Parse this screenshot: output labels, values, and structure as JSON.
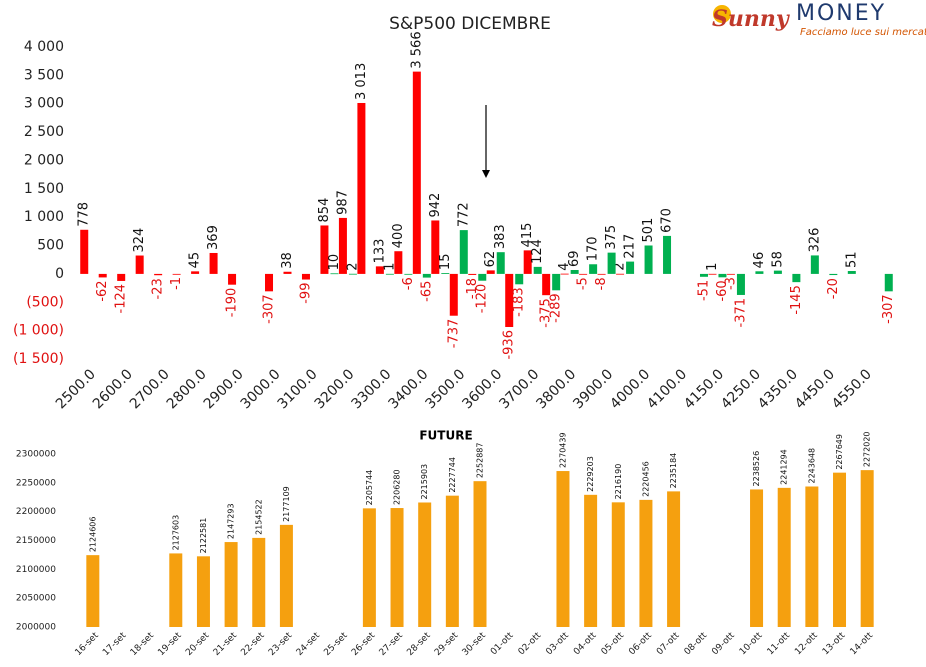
{
  "logo": {
    "brand": "Sunny",
    "name": "MONEY",
    "tagline": "Facciamo luce sui mercati"
  },
  "chart_data": [
    {
      "type": "bar",
      "title": "S&P500 DICEMBRE",
      "categories": [
        "2500.0",
        null,
        "2600.0",
        null,
        "2700.0",
        null,
        "2800.0",
        null,
        "2900.0",
        null,
        "3000.0",
        null,
        "3100.0",
        null,
        "3200.0",
        null,
        "3300.0",
        null,
        "3400.0",
        null,
        "3500.0",
        null,
        "3600.0",
        null,
        "3700.0",
        null,
        "3800.0",
        null,
        "3900.0",
        null,
        "4000.0",
        null,
        "4100.0",
        null,
        "4150.0",
        null,
        "4250.0",
        null,
        "4350.0",
        null,
        "4450.0",
        null,
        "4550.0",
        null
      ],
      "series": [
        {
          "color": "#ff0000",
          "values": [
            778,
            -62,
            -124,
            324,
            -23,
            -1,
            45,
            369,
            -190,
            null,
            -307,
            38,
            -99,
            854,
            987,
            3013,
            133,
            400,
            3566,
            942,
            -737,
            -18,
            62,
            -936,
            415,
            -375,
            4,
            -5,
            -8,
            2,
            null,
            null,
            null,
            null,
            1,
            -3,
            null,
            null,
            null,
            null,
            null,
            null,
            null,
            null
          ],
          "value_labels": [
            "778",
            "-62",
            "-124",
            "324",
            "-23",
            "-1",
            "45",
            "369",
            "-190",
            null,
            "-307",
            "38",
            "-99",
            "854",
            "987",
            "3 013",
            "133",
            "400",
            "3 566",
            "942",
            "-737",
            "-18",
            "62",
            "-936",
            "415",
            "-375",
            "4",
            "-5",
            "-8",
            "2",
            null,
            null,
            null,
            null,
            "1",
            "-3",
            null,
            null,
            null,
            null,
            null,
            null,
            null,
            null
          ]
        },
        {
          "color": "#00b050",
          "values": [
            null,
            null,
            null,
            null,
            null,
            null,
            null,
            null,
            null,
            null,
            null,
            null,
            null,
            10,
            2,
            null,
            1,
            -6,
            -65,
            15,
            772,
            -120,
            383,
            -183,
            124,
            -289,
            69,
            170,
            375,
            217,
            501,
            670,
            null,
            -51,
            -60,
            -371,
            46,
            58,
            -145,
            326,
            -20,
            51,
            null,
            -307
          ],
          "value_labels": [
            null,
            null,
            null,
            null,
            null,
            null,
            null,
            null,
            null,
            null,
            null,
            null,
            null,
            "10",
            "2",
            null,
            "1",
            "-6",
            "-65",
            "15",
            "772",
            "-120",
            "383",
            "-183",
            "124",
            "-289",
            "69",
            "170",
            "375",
            "217",
            "501",
            "670",
            null,
            "-51",
            "-60",
            "-371",
            "46",
            "58",
            "-145",
            "326",
            "-20",
            "51",
            null,
            "-307"
          ]
        }
      ],
      "ylim": [
        -1500,
        4000
      ],
      "yticks": [
        {
          "value": -1500,
          "label": "(1 500)"
        },
        {
          "value": -1000,
          "label": "(1 000)"
        },
        {
          "value": -500,
          "label": "(500)"
        },
        0,
        {
          "value": 500,
          "label": "500"
        },
        {
          "value": 1000,
          "label": "1 000"
        },
        {
          "value": 1500,
          "label": "1 500"
        },
        {
          "value": 2000,
          "label": "2 000"
        },
        {
          "value": 2500,
          "label": "2 500"
        },
        {
          "value": 3000,
          "label": "3 000"
        },
        {
          "value": 3500,
          "label": "3 500"
        },
        {
          "value": 4000,
          "label": "4 000"
        }
      ],
      "negative_color": "#e01010",
      "grid": false
    },
    {
      "type": "bar",
      "title": "FUTURE",
      "categories": [
        "16-set",
        "17-set",
        "18-set",
        "19-set",
        "20-set",
        "21-set",
        "22-set",
        "23-set",
        "24-set",
        "25-set",
        "26-set",
        "27-set",
        "28-set",
        "29-set",
        "30-set",
        "01-ott",
        "02-ott",
        "03-ott",
        "04-ott",
        "05-ott",
        "06-ott",
        "07-ott",
        "08-ott",
        "09-ott",
        "10-ott",
        "11-ott",
        "12-ott",
        "13-ott",
        "14-ott"
      ],
      "series": [
        {
          "color": "#f5a00f",
          "values": [
            2124606,
            null,
            null,
            2127603,
            2122581,
            2147293,
            2154522,
            2177109,
            null,
            null,
            2205744,
            2206280,
            2215903,
            2227744,
            2252887,
            null,
            null,
            2270439,
            2229203,
            2216190,
            2220456,
            2235184,
            null,
            null,
            2238526,
            2241294,
            2243648,
            2267649,
            2272020
          ]
        }
      ],
      "ylim": [
        2000000,
        2300000
      ],
      "yticks": [
        2000000,
        2050000,
        2100000,
        2150000,
        2200000,
        2250000,
        2300000
      ],
      "grid": false
    }
  ]
}
